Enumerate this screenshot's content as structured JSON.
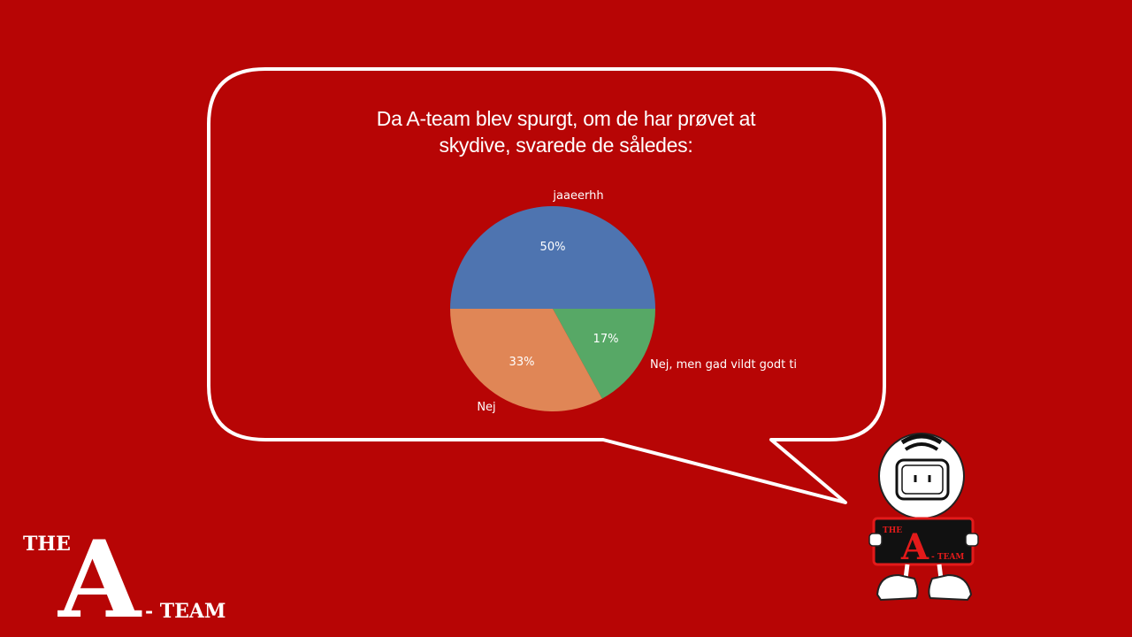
{
  "chart_data": {
    "type": "pie",
    "title_lines": [
      "Da A-team blev spurgt, om de har prøvet at",
      "skydive, svarede de således:"
    ],
    "slices": [
      {
        "label": "jaaeerhh",
        "value": 50,
        "value_label": "50%",
        "color": "#4e74b0"
      },
      {
        "label": "Nej, men gad vildt godt ti",
        "value": 17,
        "value_label": "17%",
        "color": "#57a866"
      },
      {
        "label": "Nej",
        "value": 33,
        "value_label": "33%",
        "color": "#e08656"
      }
    ]
  },
  "logo": {
    "the": "THE",
    "letter": "A",
    "team": "- TEAM"
  },
  "mascot": {
    "sign_the": "THE",
    "sign_letter": "A",
    "sign_team": "- TEAM"
  },
  "colors": {
    "background": "#b70505",
    "bubble_stroke": "#ffffff"
  }
}
